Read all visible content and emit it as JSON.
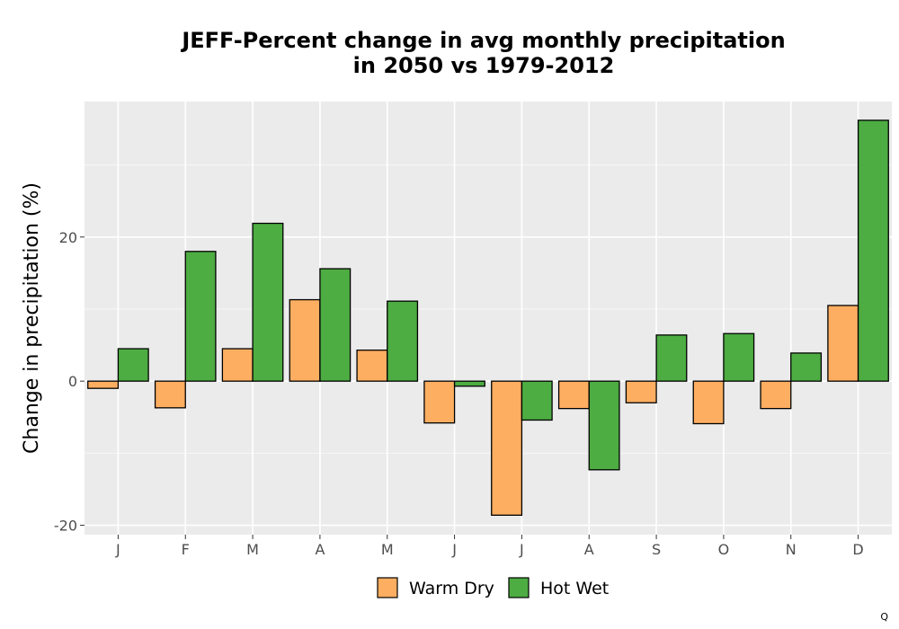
{
  "chart_data": {
    "type": "bar",
    "title_lines": [
      "JEFF-Percent change in avg monthly precipitation",
      "in 2050 vs 1979-2012"
    ],
    "xlabel": "",
    "ylabel": "Change in precipitation (%)",
    "categories": [
      "J",
      "F",
      "M",
      "A",
      "M",
      "J",
      "J",
      "A",
      "S",
      "O",
      "N",
      "D"
    ],
    "series": [
      {
        "name": "Warm Dry",
        "color": "#FDAE61",
        "values": [
          -1.0,
          -3.7,
          4.5,
          11.3,
          4.3,
          -5.8,
          -18.6,
          -3.8,
          -3.0,
          -5.9,
          -3.8,
          10.5
        ]
      },
      {
        "name": "Hot Wet",
        "color": "#4DAC42",
        "values": [
          4.5,
          18.0,
          21.9,
          15.6,
          11.1,
          -0.7,
          -5.4,
          -12.3,
          6.4,
          6.6,
          3.9,
          36.2
        ]
      }
    ],
    "ylim": [
      -21.3,
      38.8
    ],
    "yticks": [
      -20,
      0,
      20
    ],
    "grid": true,
    "legend_position": "bottom"
  },
  "corner_mark": "Q"
}
